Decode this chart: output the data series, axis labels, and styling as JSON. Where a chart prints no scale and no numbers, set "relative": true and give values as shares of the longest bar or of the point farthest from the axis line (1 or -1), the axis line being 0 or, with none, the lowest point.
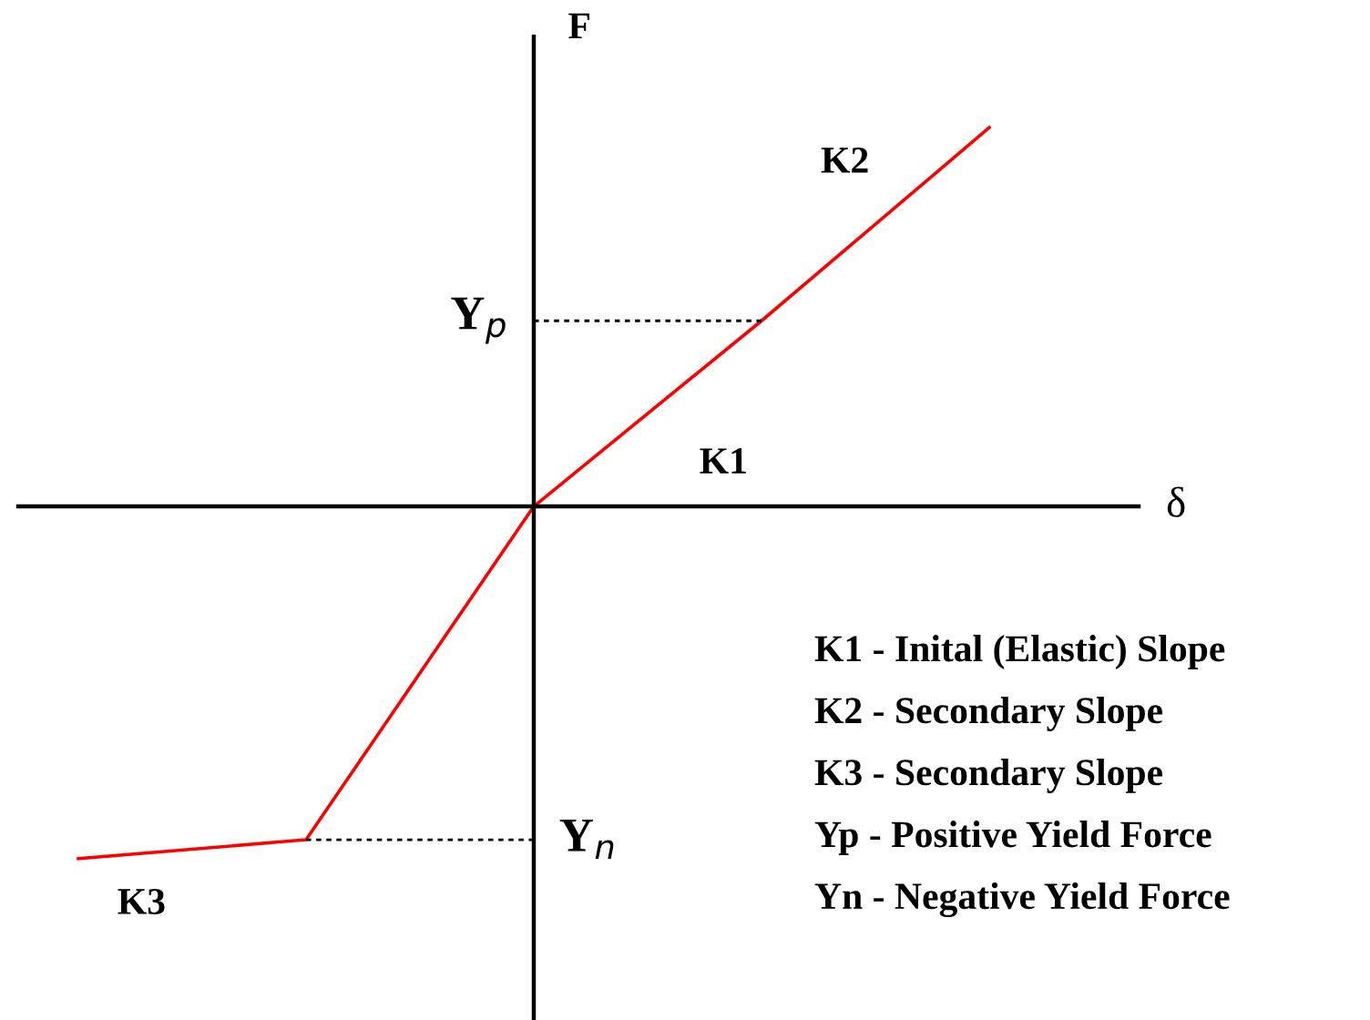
{
  "chart_data": {
    "type": "line",
    "relative": true,
    "xlabel": "δ",
    "ylabel": "F",
    "categories": [
      null,
      null,
      null,
      null,
      null
    ],
    "series": [
      {
        "color": "#ff0000",
        "values": [
          -0.93,
          -0.88,
          0,
          0.49,
          1
        ]
      }
    ],
    "marker": "none",
    "line_style": "solid",
    "annotations": [
      "K2",
      "K1",
      "K3",
      "Y$_{p}$",
      "Y$_{n}$",
      "K1 - Inital (Elastic) Slope",
      "K2 - Secondary Slope",
      "K3 - Secondary Slope",
      "Yp - Positive Yield Force",
      "Yn - Negative Yield Force"
    ]
  }
}
